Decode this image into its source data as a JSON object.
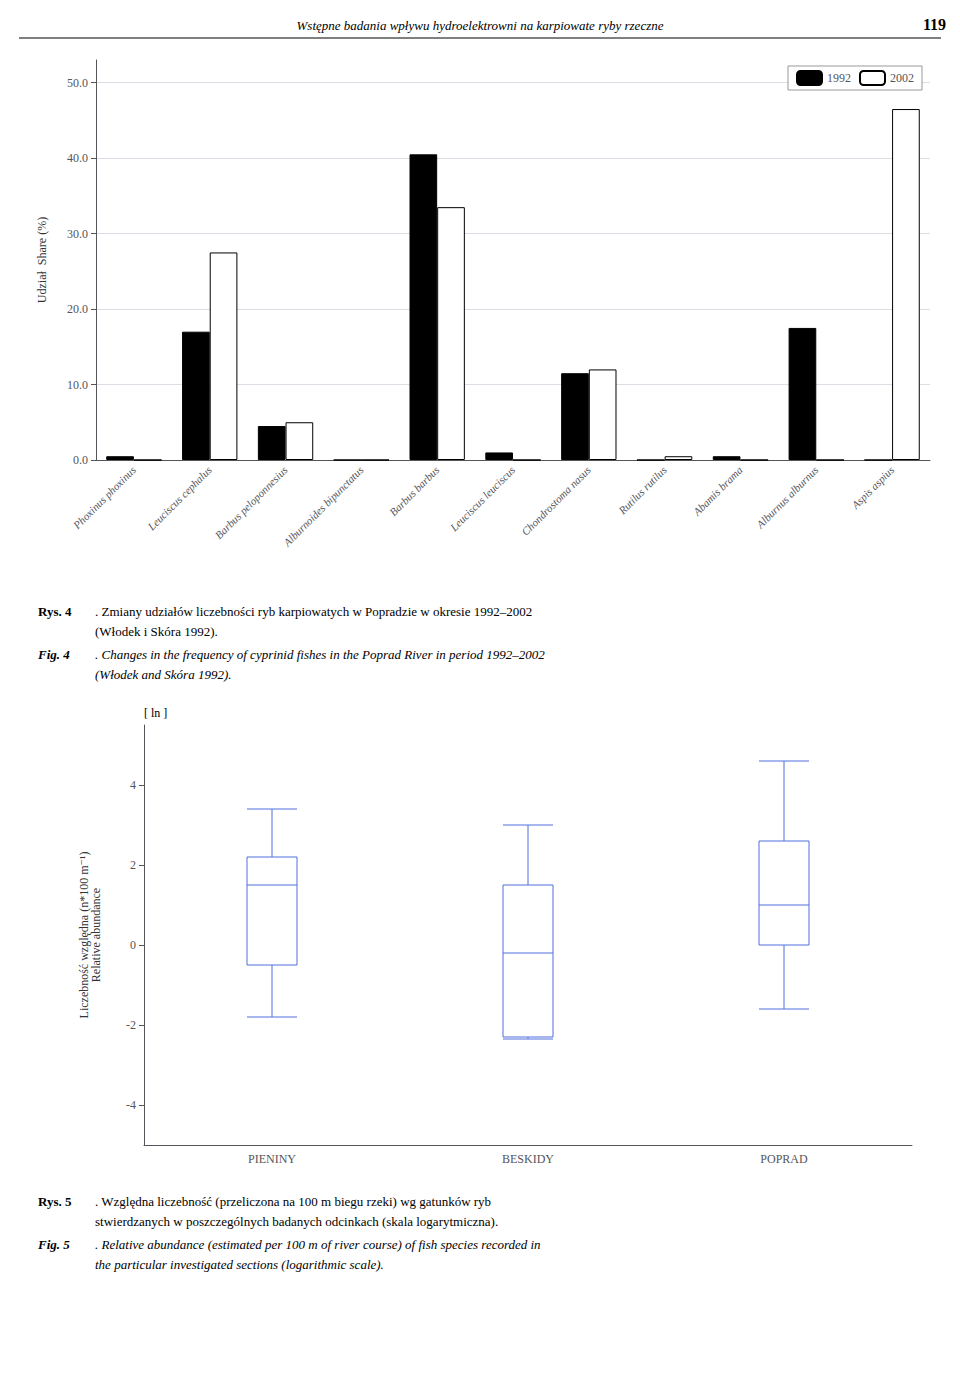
{
  "chart_data": [
    {
      "type": "bar",
      "categories": [
        "Phoxinus phoxinus",
        "Leuciscus cephalus",
        "Barbus peloponnesius",
        "Alburnoides bipunctatus",
        "Barbus barbus",
        "Leuciscus leuciscus",
        "Chondrostoma nasus",
        "Rutilus rutilus",
        "Abamis brama",
        "Alburnus alburnus",
        "Aspis aspius"
      ],
      "series": [
        {
          "name": "1992",
          "color": "#000000",
          "values": [
            0.5,
            17.0,
            4.5,
            0.0,
            40.5,
            1.0,
            11.5,
            0.0,
            0.5,
            17.5,
            0.0
          ]
        },
        {
          "name": "2002",
          "color": "#ffffff",
          "values": [
            0.0,
            27.5,
            5.0,
            0.0,
            33.5,
            0.0,
            12.0,
            0.5,
            0.0,
            0.0,
            46.5
          ]
        }
      ],
      "ylabel": "Udział  Share (%)",
      "ylim": [
        0,
        53
      ],
      "yticks": [
        {
          "value": 0,
          "label": "0.0"
        },
        {
          "value": 10,
          "label": "10.0"
        },
        {
          "value": 20,
          "label": "20.0"
        },
        {
          "value": 30,
          "label": "30.0"
        },
        {
          "value": 40,
          "label": "40.0"
        },
        {
          "value": 50,
          "label": "50.0"
        }
      ],
      "grid": true,
      "legend": "upper right",
      "annotations": [
        "Wstępne badania wpływu hydroelektrowni na karpiowate ryby rzeczne",
        "119",
        "Rys. 4",
        ". Zmiany udziałów liczebności ryb karpiowatych w Popradzie w okresie 1992–2002",
        "(Włodek i Skóra 1992).",
        "Fig. 4",
        ". Changes in the frequency of cyprinid fishes in the Poprad River in period 1992–2002",
        "(Włodek and Skóra 1992)."
      ]
    },
    {
      "type": "boxplot",
      "categories": [
        "PIENINY",
        "BESKIDY",
        "POPRAD"
      ],
      "values": [
        {
          "whisker_low": -1.8,
          "q1": -0.5,
          "median": 1.5,
          "q3": 2.2,
          "whisker_high": 3.4
        },
        {
          "whisker_low": -2.35,
          "q1": -2.3,
          "median": -0.2,
          "q3": 1.5,
          "whisker_high": 3.0
        },
        {
          "whisker_low": -1.6,
          "q1": 0.0,
          "median": 1.0,
          "q3": 2.6,
          "whisker_high": 4.6
        }
      ],
      "ylabel": "Liczebność względna (n*100 m⁻¹)\nRelative abundance",
      "ylim": [
        -5,
        5.5
      ],
      "yticks": [
        -4,
        -2,
        0,
        2,
        4
      ],
      "grid": false,
      "annotations": [
        "[ ln ]",
        "Rys. 5",
        ". Względna liczebność (przeliczona na 100 m biegu rzeki) wg gatunków ryb",
        "stwierdzanych w poszczególnych badanych odcinkach (skala logarytmiczna).",
        "Fig. 5",
        ". Relative abundance (estimated per 100 m of river course) of fish species recorded in",
        "the particular investigated sections (logarithmic scale)."
      ]
    }
  ]
}
